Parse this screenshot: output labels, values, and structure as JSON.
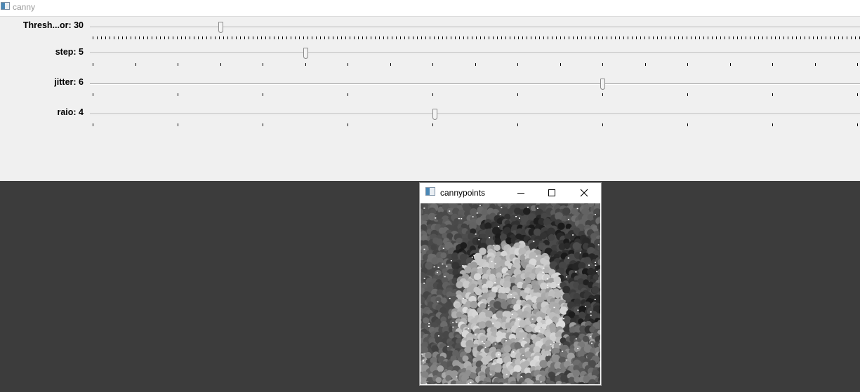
{
  "main_window": {
    "title": "canny",
    "trackbars": [
      {
        "label": "Thresh...or: 30",
        "value": 30,
        "fraction": 0.17
      },
      {
        "label": "step: 5",
        "value": 5,
        "fraction": 0.28
      },
      {
        "label": "jitter: 6",
        "value": 6,
        "fraction": 0.665
      },
      {
        "label": "raio: 4",
        "value": 4,
        "fraction": 0.448
      }
    ]
  },
  "image_window": {
    "title": "cannypoints",
    "minimize_icon": "minimize-icon",
    "maximize_icon": "maximize-icon",
    "close_icon": "close-icon"
  }
}
